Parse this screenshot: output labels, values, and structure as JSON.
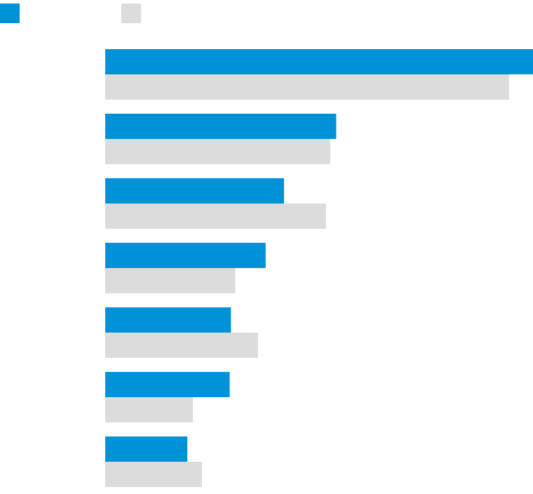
{
  "legend": {
    "placement": "top-left",
    "entries": [
      {
        "label": "",
        "color": "#0092d8"
      },
      {
        "label": "",
        "color": "#dcdcdc"
      }
    ]
  },
  "chart_data": {
    "type": "bar",
    "orientation": "horizontal",
    "title": "",
    "xlabel": "",
    "ylabel": "",
    "categories": [
      "",
      "",
      "",
      "",
      "",
      "",
      ""
    ],
    "grid": false,
    "xlim": [
      0,
      100
    ],
    "series": [
      {
        "color": "#0092d8",
        "values": [
          100,
          54,
          41.8,
          37.5,
          29.4,
          29.1,
          19.2
        ]
      },
      {
        "color": "#dcdcdc",
        "values": [
          94.4,
          52.6,
          51.6,
          30.4,
          35.7,
          20.5,
          22.6
        ]
      }
    ]
  }
}
